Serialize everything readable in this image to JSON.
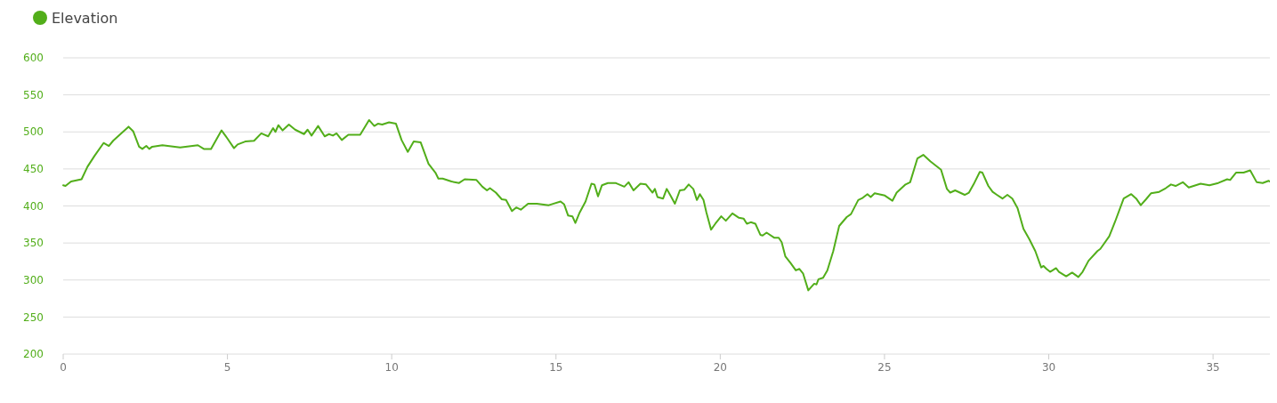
{
  "chart_data": {
    "type": "line",
    "legend": "top left",
    "grid": "y",
    "marker": "none",
    "line_style": "solid",
    "xlim": [
      0,
      36.73
    ],
    "ylim": [
      200,
      600
    ],
    "xticks": [
      0,
      5,
      10,
      15,
      20,
      25,
      30,
      35
    ],
    "yticks": [
      200,
      250,
      300,
      350,
      400,
      450,
      500,
      550,
      600
    ],
    "series": [
      {
        "name": "Elevation",
        "color": "#52ae1a",
        "x": [
          0,
          0.07,
          0.24,
          0.56,
          0.74,
          0.96,
          1.23,
          1.39,
          1.52,
          1.72,
          1.99,
          2.13,
          2.31,
          2.41,
          2.53,
          2.62,
          2.71,
          3.02,
          3.56,
          4.1,
          4.28,
          4.5,
          4.82,
          5.0,
          5.2,
          5.31,
          5.54,
          5.81,
          6.03,
          6.24,
          6.39,
          6.46,
          6.55,
          6.68,
          6.87,
          7.06,
          7.33,
          7.44,
          7.56,
          7.76,
          7.96,
          8.09,
          8.21,
          8.32,
          8.48,
          8.68,
          9.04,
          9.31,
          9.47,
          9.58,
          9.71,
          9.92,
          10.13,
          10.3,
          10.49,
          10.67,
          10.88,
          11.12,
          11.33,
          11.42,
          11.55,
          11.82,
          12.05,
          12.22,
          12.58,
          12.76,
          12.9,
          12.99,
          13.17,
          13.35,
          13.48,
          13.66,
          13.79,
          13.93,
          14.15,
          14.42,
          14.78,
          15.14,
          15.25,
          15.37,
          15.5,
          15.59,
          15.72,
          15.9,
          16.08,
          16.17,
          16.28,
          16.4,
          16.58,
          16.81,
          17.08,
          17.21,
          17.36,
          17.57,
          17.74,
          17.94,
          18.01,
          18.09,
          18.26,
          18.37,
          18.5,
          18.62,
          18.77,
          18.91,
          19.04,
          19.18,
          19.29,
          19.38,
          19.49,
          19.58,
          19.72,
          19.85,
          20.03,
          20.17,
          20.37,
          20.57,
          20.71,
          20.81,
          20.93,
          21.07,
          21.22,
          21.29,
          21.41,
          21.65,
          21.78,
          21.87,
          21.98,
          22.14,
          22.3,
          22.41,
          22.52,
          22.68,
          22.86,
          22.93,
          22.99,
          23.13,
          23.26,
          23.44,
          23.62,
          23.85,
          23.98,
          24.2,
          24.34,
          24.48,
          24.58,
          24.7,
          25.01,
          25.24,
          25.37,
          25.64,
          25.78,
          26.0,
          26.18,
          26.4,
          26.72,
          26.9,
          27.0,
          27.15,
          27.44,
          27.57,
          27.71,
          27.9,
          27.98,
          28.16,
          28.29,
          28.42,
          28.59,
          28.74,
          28.89,
          29.05,
          29.23,
          29.41,
          29.59,
          29.77,
          29.84,
          29.93,
          30.04,
          30.22,
          30.31,
          30.53,
          30.71,
          30.9,
          31.03,
          31.21,
          31.48,
          31.57,
          31.84,
          32.02,
          32.28,
          32.51,
          32.66,
          32.8,
          32.96,
          33.11,
          33.36,
          33.56,
          33.72,
          33.86,
          34.08,
          34.26,
          34.62,
          34.89,
          35.16,
          35.43,
          35.52,
          35.7,
          35.93,
          36.13,
          36.33,
          36.51,
          36.69,
          36.73
        ],
        "values": [
          428,
          427,
          433,
          436,
          453,
          468,
          485,
          481,
          488,
          496,
          507,
          501,
          480,
          477,
          481,
          477,
          480,
          482,
          479,
          482,
          477,
          477,
          502,
          491,
          478,
          483,
          487,
          488,
          498,
          494,
          505,
          500,
          509,
          502,
          510,
          503,
          497,
          503,
          495,
          508,
          494,
          497,
          495,
          498,
          489,
          496,
          496,
          516,
          508,
          511,
          510,
          513,
          511,
          489,
          473,
          487,
          486,
          457,
          445,
          437,
          437,
          433,
          431,
          436,
          435,
          426,
          421,
          424,
          418,
          409,
          408,
          393,
          398,
          395,
          403,
          403,
          401,
          406,
          402,
          387,
          386,
          377,
          391,
          406,
          430,
          429,
          413,
          428,
          431,
          431,
          426,
          432,
          421,
          430,
          429,
          418,
          423,
          412,
          410,
          423,
          413,
          403,
          421,
          422,
          429,
          423,
          408,
          416,
          408,
          391,
          368,
          376,
          386,
          380,
          390,
          384,
          383,
          376,
          378,
          376,
          361,
          360,
          364,
          357,
          357,
          351,
          332,
          323,
          313,
          315,
          309,
          286,
          295,
          294,
          301,
          303,
          313,
          339,
          373,
          385,
          389,
          408,
          411,
          416,
          412,
          417,
          414,
          407,
          418,
          429,
          432,
          464,
          469,
          460,
          449,
          423,
          418,
          421,
          415,
          418,
          429,
          446,
          445,
          427,
          419,
          415,
          410,
          415,
          410,
          397,
          369,
          355,
          339,
          317,
          319,
          315,
          311,
          316,
          311,
          305,
          310,
          304,
          311,
          326,
          339,
          342,
          359,
          379,
          410,
          416,
          410,
          401,
          409,
          417,
          419,
          424,
          429,
          427,
          432,
          425,
          430,
          428,
          431,
          436,
          435,
          445,
          445,
          448,
          432,
          431,
          434,
          433
        ]
      }
    ]
  }
}
